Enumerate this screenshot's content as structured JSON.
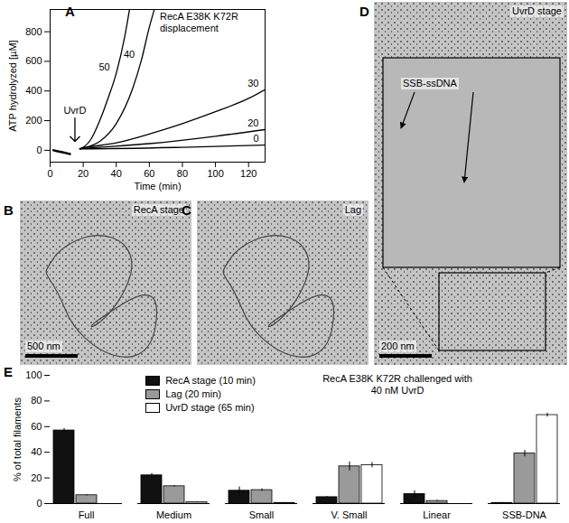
{
  "chart_data": [
    {
      "panel": "A",
      "type": "line",
      "title": "RecA E38K K72R displacement",
      "x_label": "Time (min)",
      "y_label": "ATP hydrolyzed [µM]",
      "xlim": [
        0,
        130
      ],
      "xticks": [
        0,
        20,
        40,
        60,
        80,
        100,
        120
      ],
      "ylim": [
        -80,
        950
      ],
      "yticks": [
        0,
        200,
        400,
        600,
        800
      ],
      "color": "#000000",
      "annotations": [
        {
          "text": "UvrD",
          "x": 15,
          "y": 60
        }
      ],
      "series": [
        {
          "name": null,
          "x": [
            2,
            4,
            6,
            8,
            10,
            12
          ],
          "values": [
            0,
            -5,
            -10,
            -15,
            -20,
            -25
          ]
        },
        {
          "name": "50",
          "x": [
            18,
            20,
            25,
            30,
            35,
            40,
            45,
            48
          ],
          "values": [
            10,
            20,
            80,
            200,
            350,
            520,
            760,
            950
          ]
        },
        {
          "name": "40",
          "x": [
            18,
            20,
            30,
            40,
            50,
            55,
            60,
            63
          ],
          "values": [
            10,
            15,
            60,
            180,
            420,
            600,
            830,
            950
          ]
        },
        {
          "name": "30",
          "x": [
            18,
            20,
            40,
            60,
            80,
            100,
            120,
            130
          ],
          "values": [
            10,
            15,
            50,
            110,
            180,
            260,
            350,
            410
          ]
        },
        {
          "name": "20",
          "x": [
            18,
            20,
            60,
            100,
            130
          ],
          "values": [
            10,
            12,
            45,
            95,
            140
          ]
        },
        {
          "name": "0",
          "x": [
            18,
            20,
            80,
            130
          ],
          "values": [
            10,
            10,
            20,
            35
          ]
        }
      ]
    },
    {
      "panel": "E",
      "type": "bar",
      "title": "RecA E38K K72R challenged with 40 nM UvrD",
      "y_label": "% of total filaments",
      "categories": [
        "Full",
        "Medium",
        "Small",
        "V. Small",
        "Linear",
        "SSB-DNA"
      ],
      "ylim": [
        0,
        100
      ],
      "yticks": [
        0,
        20,
        40,
        60,
        80,
        100
      ],
      "legend": "top-left",
      "series": [
        {
          "name": "RecA stage (10 min)",
          "color": "#111111",
          "values": [
            57,
            22,
            10,
            5,
            7.5,
            0.5
          ],
          "errors": [
            1.5,
            1.5,
            3,
            0.5,
            2.5,
            0.3
          ]
        },
        {
          "name": "Lag (20 min)",
          "color": "#9a9a9a",
          "values": [
            6.5,
            13.5,
            10.5,
            29,
            2,
            39
          ],
          "errors": [
            0.5,
            0.5,
            1,
            3.5,
            0.5,
            2.5
          ]
        },
        {
          "name": "UvrD stage (65 min)",
          "color": "#ffffff",
          "values": [
            0,
            1,
            0.5,
            30,
            0,
            69
          ],
          "errors": [
            0,
            0.3,
            0.3,
            2,
            0,
            1.5
          ]
        }
      ]
    }
  ],
  "images": [
    {
      "panel": "B",
      "label": "RecA stage",
      "scale_bar": "500 nm"
    },
    {
      "panel": "C",
      "label": "Lag"
    },
    {
      "panel": "D",
      "label": "UvrD stage",
      "callout": "SSB-ssDNA",
      "scale_bar": "200 nm"
    }
  ]
}
